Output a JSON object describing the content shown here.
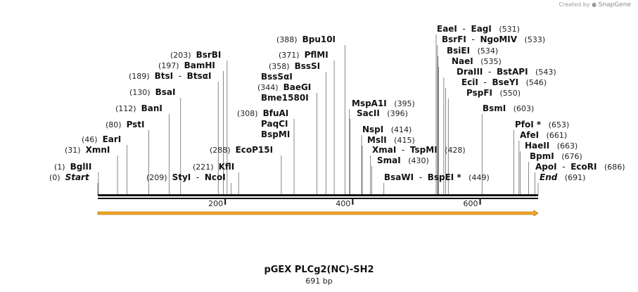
{
  "credit": {
    "prefix": "Created by",
    "brand": "SnapGene"
  },
  "title": "pGEX PLCg2(NC)-SH2",
  "length_label": "691 bp",
  "sequence": {
    "length": 691,
    "ticks": [
      200,
      400,
      600
    ]
  },
  "colors": {
    "feature_arrow": "#f5a623",
    "feature_outline": "#8a5a00",
    "backbone": "#111111"
  },
  "sites": [
    {
      "pos": 0,
      "name": "Start",
      "style": "italic"
    },
    {
      "pos": 1,
      "name": "BglII"
    },
    {
      "pos": 31,
      "name": "XmnI"
    },
    {
      "pos": 46,
      "name": "EarI"
    },
    {
      "pos": 80,
      "name": "PstI"
    },
    {
      "pos": 112,
      "name": "BanI"
    },
    {
      "pos": 130,
      "name": "BsaI"
    },
    {
      "pos": 189,
      "name": "BtsI",
      "alt": "BtsαI"
    },
    {
      "pos": 197,
      "name": "BamHI"
    },
    {
      "pos": 203,
      "name": "BsrBI"
    },
    {
      "pos": 209,
      "name": "StyI",
      "alt": "NcoI"
    },
    {
      "pos": 221,
      "name": "KflI"
    },
    {
      "pos": 288,
      "name": "EcoP15I"
    },
    {
      "pos": 308,
      "name": "BfuAI",
      "extra": [
        "PaqCI",
        "BspMI"
      ]
    },
    {
      "pos": 344,
      "name": "BaeGI",
      "extra": [
        "Bme1580I"
      ]
    },
    {
      "pos": 358,
      "name": "BssSI",
      "extra": [
        "BssSαI"
      ]
    },
    {
      "pos": 371,
      "name": "PflMI"
    },
    {
      "pos": 388,
      "name": "Bpu10I"
    },
    {
      "pos": 395,
      "name": "MspA1I"
    },
    {
      "pos": 396,
      "name": "SacII"
    },
    {
      "pos": 414,
      "name": "NspI"
    },
    {
      "pos": 415,
      "name": "MslI"
    },
    {
      "pos": 428,
      "name": "XmaI",
      "alt": "TspMI"
    },
    {
      "pos": 430,
      "name": "SmaI"
    },
    {
      "pos": 449,
      "name": "BsaWI",
      "alt": "BspEI *"
    },
    {
      "pos": 531,
      "name": "EaeI",
      "alt": "EagI"
    },
    {
      "pos": 533,
      "name": "BsrFI",
      "alt": "NgoMIV"
    },
    {
      "pos": 534,
      "name": "BsiEI"
    },
    {
      "pos": 535,
      "name": "NaeI"
    },
    {
      "pos": 543,
      "name": "DraIII",
      "alt": "BstAPI"
    },
    {
      "pos": 546,
      "name": "EciI",
      "alt": "BseYI"
    },
    {
      "pos": 550,
      "name": "PspFI"
    },
    {
      "pos": 603,
      "name": "BsmI"
    },
    {
      "pos": 653,
      "name": "PfoI *"
    },
    {
      "pos": 661,
      "name": "AfeI"
    },
    {
      "pos": 663,
      "name": "HaeII"
    },
    {
      "pos": 676,
      "name": "BpmI"
    },
    {
      "pos": 686,
      "name": "ApoI",
      "alt": "EcoRI"
    },
    {
      "pos": 691,
      "name": "End",
      "style": "italic"
    }
  ]
}
